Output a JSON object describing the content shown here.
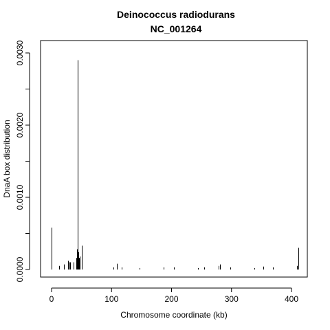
{
  "chart_data": {
    "type": "bar",
    "title": "Deinococcus radiodurans",
    "subtitle": "NC_001264",
    "xlabel": "Chromosome coordinate (kb)",
    "ylabel": "DnaA box distribution",
    "xlim": [
      -8,
      420
    ],
    "ylim": [
      -0.0002,
      0.003
    ],
    "xticks": [
      0,
      100,
      200,
      300,
      400
    ],
    "yticks": [
      0.0,
      0.0005,
      0.001,
      0.0015,
      0.002,
      0.0025,
      0.003
    ],
    "ytick_labels": [
      "0.0000",
      "0.0010",
      "0.0020",
      "0.0030"
    ],
    "ytick_label_values": [
      0.0,
      0.001,
      0.002,
      0.003
    ],
    "grid": false,
    "points": [
      {
        "x": 0.5,
        "y": 0.00058
      },
      {
        "x": 13,
        "y": 5e-05
      },
      {
        "x": 21,
        "y": 7e-05
      },
      {
        "x": 27,
        "y": 0.00012
      },
      {
        "x": 30,
        "y": 0.0001
      },
      {
        "x": 31,
        "y": 0.0001
      },
      {
        "x": 37,
        "y": 0.0001
      },
      {
        "x": 41,
        "y": 0.00016
      },
      {
        "x": 42.5,
        "y": 0.00028
      },
      {
        "x": 43.5,
        "y": 0.0029
      },
      {
        "x": 44.5,
        "y": 0.00024
      },
      {
        "x": 45.5,
        "y": 0.00016
      },
      {
        "x": 47,
        "y": 0.00018
      },
      {
        "x": 50,
        "y": 0.00033
      },
      {
        "x": 103,
        "y": 3e-05
      },
      {
        "x": 109,
        "y": 8e-05
      },
      {
        "x": 117,
        "y": 3e-05
      },
      {
        "x": 147,
        "y": 2e-05
      },
      {
        "x": 187,
        "y": 3e-05
      },
      {
        "x": 204,
        "y": 3e-05
      },
      {
        "x": 244,
        "y": 2e-05
      },
      {
        "x": 255,
        "y": 3e-05
      },
      {
        "x": 278,
        "y": 5e-05
      },
      {
        "x": 281,
        "y": 7e-05
      },
      {
        "x": 298,
        "y": 3e-05
      },
      {
        "x": 338,
        "y": 2e-05
      },
      {
        "x": 353,
        "y": 4e-05
      },
      {
        "x": 369,
        "y": 3e-05
      },
      {
        "x": 409,
        "y": 5e-05
      },
      {
        "x": 411,
        "y": 0.0003
      }
    ]
  }
}
